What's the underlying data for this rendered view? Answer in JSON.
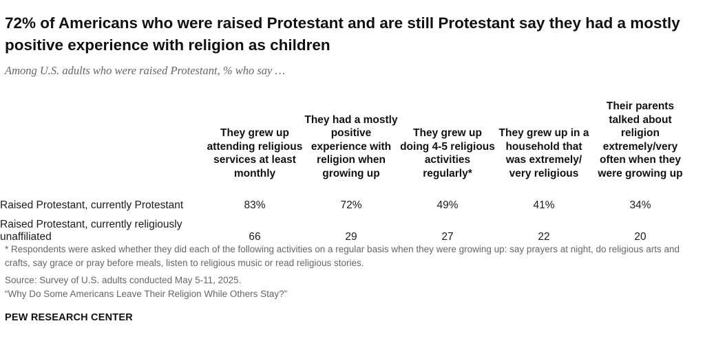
{
  "title": "72% of Americans who were raised Protestant and are still Protestant say they had a mostly positive experience with religion as children",
  "subtitle": "Among U.S. adults who were raised Protestant, % who say …",
  "chart_data": {
    "type": "table",
    "columns": [
      "They grew up attending religious services at least monthly",
      "They had a mostly positive experience with religion when growing up",
      "They grew up doing 4-5 religious activities regularly*",
      "They grew up in a household that was extremely/ very religious",
      "Their parents talked about religion extremely/very often when they were growing up"
    ],
    "rows": [
      {
        "label": "Raised Protestant, currently Protestant",
        "values": [
          83,
          72,
          49,
          41,
          34
        ],
        "display": [
          "83%",
          "72%",
          "49%",
          "41%",
          "34%"
        ]
      },
      {
        "label": "Raised Protestant, currently religiously unaffiliated",
        "values": [
          66,
          29,
          27,
          22,
          20
        ],
        "display": [
          "66",
          "29",
          "27",
          "22",
          "20"
        ]
      }
    ]
  },
  "footer": {
    "note": "* Respondents were asked whether they did each of the following activities on a regular basis when they were growing up: say prayers at night, do religious arts and crafts, say grace or pray before meals, listen to religious music or read religious stories.",
    "source": "Source: Survey of U.S. adults conducted May 5-11, 2025.",
    "report": "“Why Do Some Americans Leave Their Religion While Others Stay?”",
    "brand": "PEW RESEARCH CENTER"
  }
}
